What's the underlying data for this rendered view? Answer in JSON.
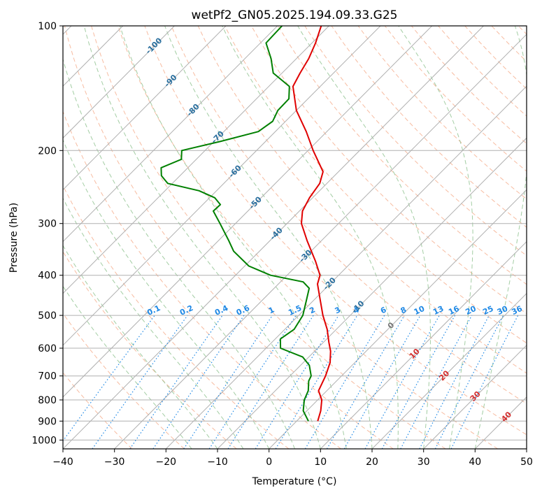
{
  "chart_data": {
    "type": "line",
    "title": "wetPf2_GN05.2025.194.09.33.G25",
    "xlabel": "Temperature (°C)",
    "ylabel": "Pressure (hPa)",
    "xlim": [
      -40,
      50
    ],
    "ylim": [
      1050,
      100
    ],
    "y_scale": "log",
    "skew": true,
    "grid": true,
    "x_ticks": [
      -40,
      -30,
      -20,
      -10,
      0,
      10,
      20,
      30,
      40,
      50
    ],
    "y_ticks": [
      100,
      200,
      300,
      400,
      500,
      600,
      700,
      800,
      900,
      1000
    ],
    "series": [
      {
        "color": "#e00000",
        "pressure": [
          900,
          850,
          800,
          760,
          700,
          650,
          610,
          580,
          540,
          500,
          450,
          420,
          400,
          370,
          330,
          300,
          280,
          260,
          240,
          225,
          200,
          180,
          160,
          140,
          130,
          120,
          110,
          100
        ],
        "temperature": [
          4.1,
          2.7,
          0.8,
          -1.6,
          -3.1,
          -4.8,
          -6.9,
          -9.0,
          -11.8,
          -15.3,
          -19.6,
          -22.4,
          -23.6,
          -27.2,
          -32.8,
          -37.2,
          -39.4,
          -40.6,
          -41.4,
          -43.0,
          -49.0,
          -54.0,
          -60.0,
          -65.3,
          -66.5,
          -67.6,
          -69.3,
          -71.5
        ]
      },
      {
        "color": "#008000",
        "pressure": [
          900,
          850,
          800,
          760,
          720,
          700,
          660,
          630,
          600,
          570,
          540,
          500,
          460,
          430,
          415,
          400,
          380,
          350,
          330,
          300,
          280,
          270,
          260,
          250,
          240,
          230,
          220,
          210,
          200,
          190,
          180,
          170,
          160,
          150,
          140,
          130,
          120,
          110,
          100
        ],
        "dewpoint": [
          2.3,
          -0.7,
          -2.6,
          -3.6,
          -5.4,
          -5.9,
          -8.3,
          -11.2,
          -17.2,
          -19.0,
          -18.2,
          -19.2,
          -21.4,
          -23.2,
          -25.6,
          -33.2,
          -39.2,
          -45.0,
          -48.0,
          -53.0,
          -56.7,
          -56.6,
          -59.0,
          -63.4,
          -70.9,
          -73.6,
          -75.2,
          -72.9,
          -74.5,
          -68.7,
          -63.3,
          -62.5,
          -63.6,
          -63.7,
          -66.0,
          -71.7,
          -74.9,
          -78.9,
          -79.1
        ]
      }
    ],
    "reference_lines": {
      "dry_adiabats_C": [
        -30,
        -20,
        -10,
        0,
        10,
        20,
        30,
        40,
        50,
        60,
        70,
        80,
        90,
        100,
        110,
        120,
        130,
        140,
        150,
        160,
        170,
        180,
        190
      ],
      "moist_adiabats_C": [
        -15,
        -10,
        -5,
        0,
        5,
        10,
        15,
        20,
        25,
        30,
        35,
        40
      ],
      "mixing_ratios_gkg": [
        0.1,
        0.2,
        0.4,
        0.6,
        1,
        1.5,
        2,
        3,
        4,
        6,
        8,
        10,
        13,
        16,
        20,
        25,
        30,
        36
      ]
    },
    "annotations": {
      "mixing_ratio_labels": [
        "0.1",
        "0.2",
        "0.4",
        "0.6",
        "1",
        "1.5",
        "2",
        "3",
        "4",
        "6",
        "8",
        "10",
        "13",
        "16",
        "20",
        "25",
        "30",
        "36"
      ],
      "dry_adiabat_labels": [
        "10",
        "20",
        "30",
        "40"
      ],
      "freezing_label": "0",
      "isotherm_labels": [
        "-100",
        "-90",
        "-80",
        "-70",
        "-60",
        "-50",
        "-40",
        "-30",
        "-20",
        "-10"
      ]
    },
    "colors": {
      "temperature": "#e00000",
      "dewpoint": "#008000",
      "isobar": "#b0b0b0",
      "isotherm": "#b0b0b0",
      "dry_adiabat": "#f4a582",
      "moist_adiabat": "#8cc08c",
      "mixing_ratio": "#1e88e5",
      "dry_label": "#d32f2f",
      "mix_label": "#1e88e5",
      "isotherm_label": "#2a6f9e",
      "zero_label": "#777777"
    }
  }
}
